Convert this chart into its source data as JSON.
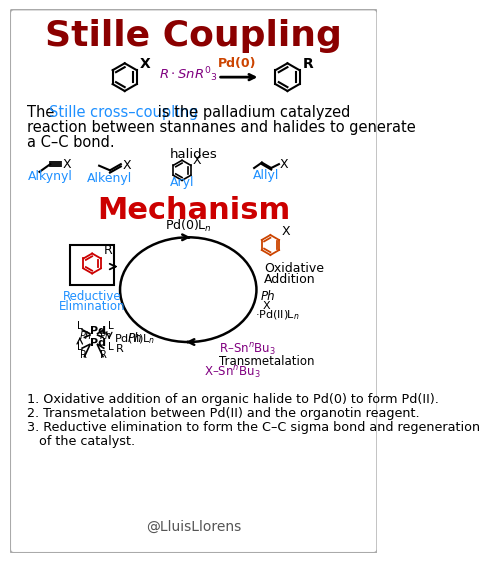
{
  "title": "Stille Coupling",
  "title_color": "#8B0000",
  "bg_color": "#FFFFFF",
  "border_color": "#AAAAAA",
  "text_color": "#000000",
  "blue_color": "#1E90FF",
  "red_color": "#CC0000",
  "purple_color": "#800080",
  "orange_color": "#CC4400",
  "mechanism_title": "Mechanism",
  "steps": [
    "1. Oxidative addition of an organic halide to Pd(0) to form Pd(II).",
    "2. Transmetalation between Pd(II) and the organotin reagent.",
    "3. Reductive elimination to form the C–C sigma bond and regeneration",
    "   of the catalyst."
  ],
  "credit": "@LluisLlorens",
  "halides_label": "halides",
  "halide_labels": [
    "Alkynyl",
    "Alkenyl",
    "Aryl",
    "Allyl"
  ]
}
